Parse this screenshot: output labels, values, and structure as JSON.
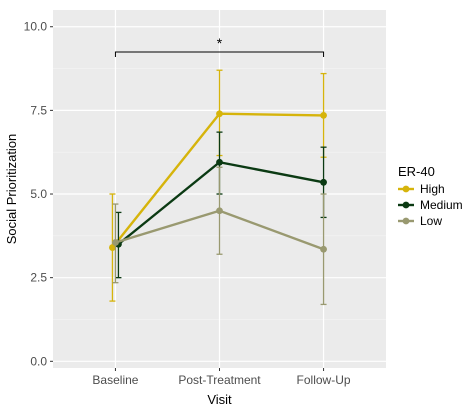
{
  "chart_data": {
    "type": "line",
    "xlabel": "Visit",
    "ylabel": "Social Prioritization",
    "categories": [
      "Baseline",
      "Post-Treatment",
      "Follow-Up"
    ],
    "ylim": [
      -0.2,
      10.5
    ],
    "yticks": [
      "0.0",
      "2.5",
      "5.0",
      "7.5",
      "10.0"
    ],
    "ytick_values": [
      0,
      2.5,
      5,
      7.5,
      10
    ],
    "grid": true,
    "legend": {
      "title": "ER-40",
      "position": "right"
    },
    "series": [
      {
        "name": "High",
        "color": "#D6B40B",
        "values": [
          3.4,
          7.4,
          7.35
        ],
        "error_low": [
          1.8,
          6.15,
          6.1
        ],
        "error_high": [
          5.0,
          8.7,
          8.6
        ]
      },
      {
        "name": "Medium",
        "color": "#0B3A13",
        "values": [
          3.5,
          5.95,
          5.35
        ],
        "error_low": [
          2.5,
          5.0,
          4.3
        ],
        "error_high": [
          4.45,
          6.85,
          6.4
        ]
      },
      {
        "name": "Low",
        "color": "#999970",
        "values": [
          3.55,
          4.5,
          3.35
        ],
        "error_low": [
          2.35,
          3.2,
          1.7
        ],
        "error_high": [
          4.7,
          5.8,
          5.0
        ]
      }
    ],
    "annotation": {
      "text": "*",
      "from": "Baseline",
      "to": "Follow-Up"
    }
  }
}
